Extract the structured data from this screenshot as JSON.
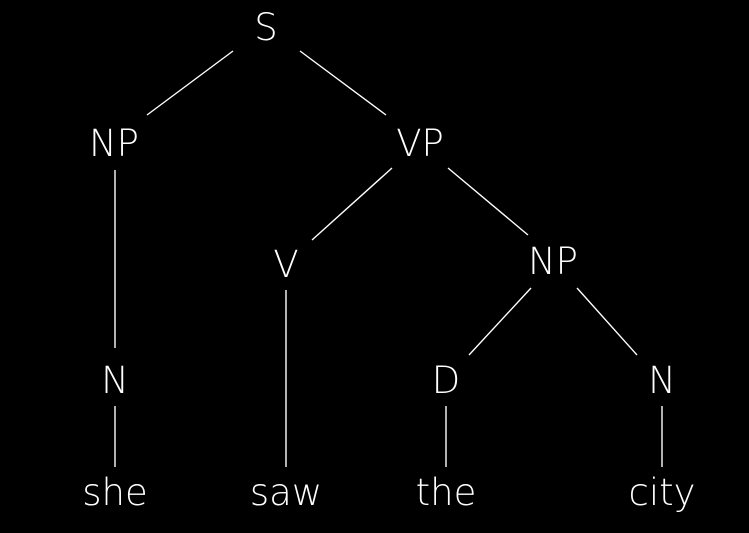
{
  "diagram": {
    "type": "syntax-tree",
    "background": "#000000",
    "foreground": "#ffffff",
    "nodes": [
      {
        "id": "S",
        "label": "S"
      },
      {
        "id": "NP1",
        "label": "NP"
      },
      {
        "id": "VP",
        "label": "VP"
      },
      {
        "id": "N1",
        "label": "N"
      },
      {
        "id": "V",
        "label": "V"
      },
      {
        "id": "NP2",
        "label": "NP"
      },
      {
        "id": "D",
        "label": "D"
      },
      {
        "id": "N2",
        "label": "N"
      },
      {
        "id": "she",
        "label": "she"
      },
      {
        "id": "saw",
        "label": "saw"
      },
      {
        "id": "the",
        "label": "the"
      },
      {
        "id": "city",
        "label": "city"
      }
    ],
    "edges": [
      {
        "from": "S",
        "to": "NP1"
      },
      {
        "from": "S",
        "to": "VP"
      },
      {
        "from": "NP1",
        "to": "N1"
      },
      {
        "from": "N1",
        "to": "she"
      },
      {
        "from": "VP",
        "to": "V"
      },
      {
        "from": "VP",
        "to": "NP2"
      },
      {
        "from": "V",
        "to": "saw"
      },
      {
        "from": "NP2",
        "to": "D"
      },
      {
        "from": "NP2",
        "to": "N2"
      },
      {
        "from": "D",
        "to": "the"
      },
      {
        "from": "N2",
        "to": "city"
      }
    ]
  }
}
